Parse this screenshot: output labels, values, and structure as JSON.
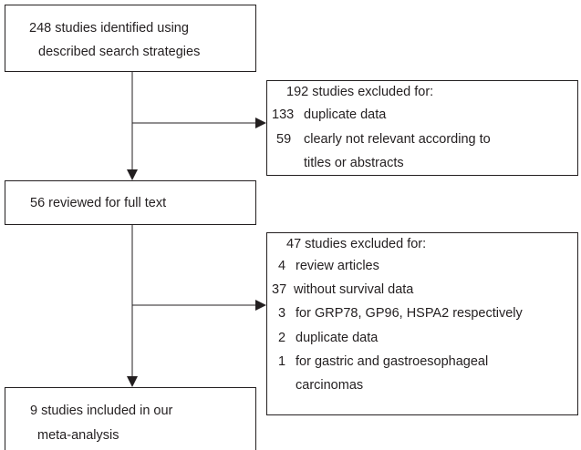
{
  "nodes": [
    {
      "lines": [
        "248 studies identified using",
        "described search strategies"
      ]
    },
    {
      "lines": [
        "56 reviewed for full text"
      ]
    },
    {
      "lines": [
        "9 studies included in our",
        "meta-analysis"
      ]
    }
  ],
  "exclusions": [
    {
      "title": "192 studies excluded for:",
      "items": [
        {
          "number": 133,
          "lines": [
            "duplicate data"
          ]
        },
        {
          "number": 59,
          "lines": [
            "clearly not relevant according to",
            "titles or abstracts"
          ]
        }
      ]
    },
    {
      "title": "47 studies excluded for:",
      "items": [
        {
          "number": 4,
          "lines": [
            "review articles"
          ]
        },
        {
          "number": 37,
          "lines": [
            "without survival data"
          ]
        },
        {
          "number": 3,
          "lines": [
            "for GRP78, GP96, HSPA2 respectively"
          ]
        },
        {
          "number": 2,
          "lines": [
            "duplicate data"
          ]
        },
        {
          "number": 1,
          "lines": [
            "for gastric and gastroesophageal",
            "carcinomas"
          ]
        }
      ]
    }
  ]
}
